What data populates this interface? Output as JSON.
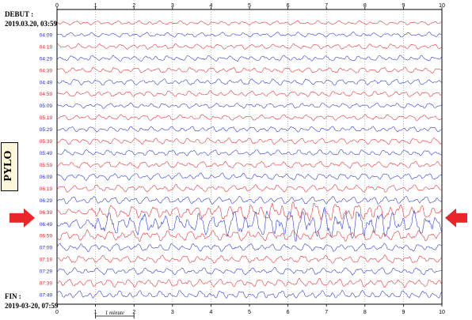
{
  "header": {
    "start_label": "DEBUT :",
    "start_value": "2019.03.20, 03:59",
    "end_label": "FIN  :",
    "end_value": "2019-03-20, 07:59",
    "station": "PYLO",
    "scale_label": "1 minute"
  },
  "colors": {
    "red_trace": "#e0262a",
    "blue_trace": "#1f2fd0",
    "arrow": "#e8262a",
    "station_bg": "#fdf6d8"
  },
  "chart_data": {
    "type": "line",
    "title": "",
    "xlabel": "",
    "ylabel": "",
    "xlim": [
      0,
      10
    ],
    "x_ticks": [
      "0",
      "1",
      "2",
      "3",
      "4",
      "5",
      "6",
      "7",
      "8",
      "9",
      "10"
    ],
    "grid": "vertical dotted lines at each minute",
    "rows": [
      {
        "label": "",
        "color": "red",
        "amplitude": 0.9
      },
      {
        "label": "04:09",
        "color": "blue",
        "amplitude": 1.0
      },
      {
        "label": "04:19",
        "color": "red",
        "amplitude": 1.1
      },
      {
        "label": "04:29",
        "color": "blue",
        "amplitude": 1.2
      },
      {
        "label": "04:39",
        "color": "red",
        "amplitude": 1.2
      },
      {
        "label": "04:49",
        "color": "blue",
        "amplitude": 1.3
      },
      {
        "label": "04:59",
        "color": "red",
        "amplitude": 1.2
      },
      {
        "label": "05:09",
        "color": "blue",
        "amplitude": 1.1
      },
      {
        "label": "05:19",
        "color": "red",
        "amplitude": 1.2
      },
      {
        "label": "05:29",
        "color": "blue",
        "amplitude": 1.2
      },
      {
        "label": "05:39",
        "color": "red",
        "amplitude": 1.3
      },
      {
        "label": "05:49",
        "color": "blue",
        "amplitude": 1.3
      },
      {
        "label": "05:59",
        "color": "red",
        "amplitude": 1.4
      },
      {
        "label": "06:09",
        "color": "blue",
        "amplitude": 1.4
      },
      {
        "label": "06:19",
        "color": "red",
        "amplitude": 1.5
      },
      {
        "label": "06:29",
        "color": "blue",
        "amplitude": 1.6
      },
      {
        "label": "06:39",
        "color": "red",
        "amplitude": 3.5
      },
      {
        "label": "06:49",
        "color": "blue",
        "amplitude": 5.5
      },
      {
        "label": "06:59",
        "color": "red",
        "amplitude": 2.2
      },
      {
        "label": "07:09",
        "color": "blue",
        "amplitude": 1.6
      },
      {
        "label": "07:19",
        "color": "red",
        "amplitude": 1.6
      },
      {
        "label": "07:29",
        "color": "blue",
        "amplitude": 1.5
      },
      {
        "label": "07:39",
        "color": "red",
        "amplitude": 1.7
      },
      {
        "label": "07:49",
        "color": "blue",
        "amplitude": 1.7
      }
    ]
  }
}
